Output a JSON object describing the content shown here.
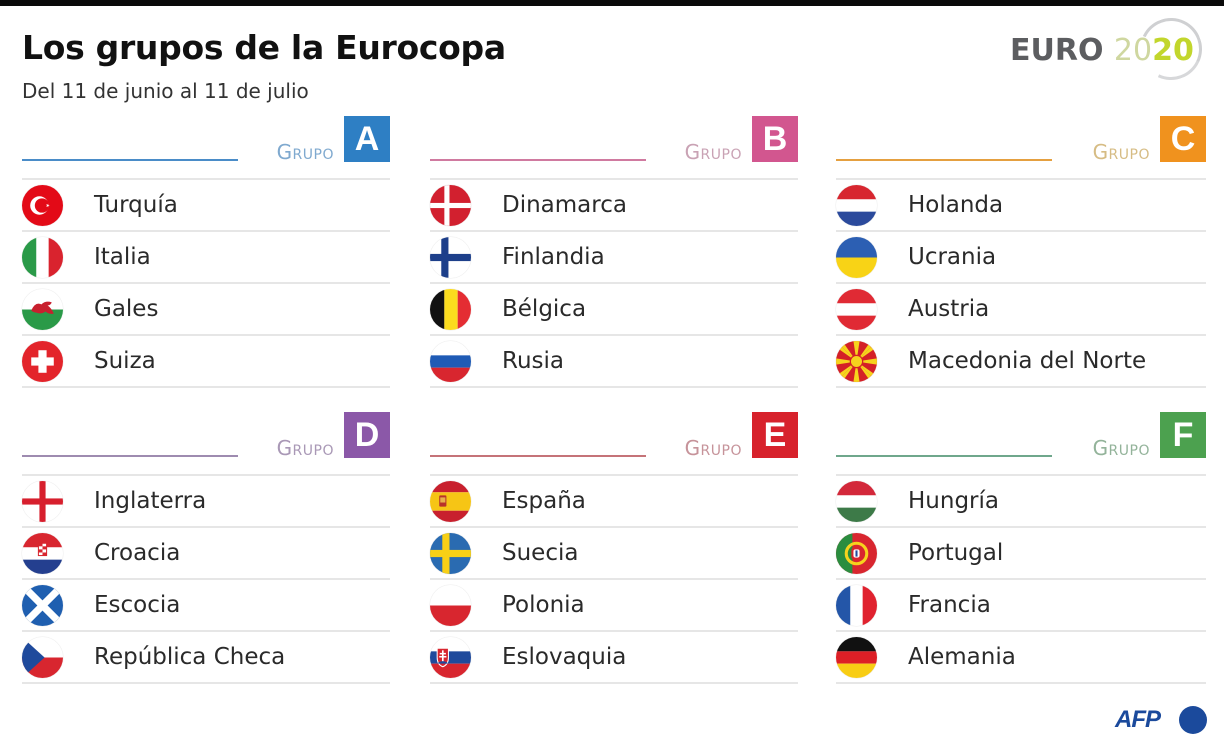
{
  "header": {
    "title": "Los grupos de la Eurocopa",
    "subtitle": "Del 11 de junio al 11 de julio"
  },
  "logo": {
    "euro": "EURO",
    "year_part1": "20",
    "year_part2": "20"
  },
  "group_label": "Grupo",
  "groups": [
    {
      "letter": "A",
      "color": "#2e7fc4",
      "label_color": "#7fa9cf",
      "line_color": "#4a8cc8",
      "teams": [
        {
          "name": "Turquía",
          "flag": "turkey-flag"
        },
        {
          "name": "Italia",
          "flag": "italy-flag"
        },
        {
          "name": "Gales",
          "flag": "wales-flag"
        },
        {
          "name": "Suiza",
          "flag": "switzerland-flag"
        }
      ]
    },
    {
      "letter": "B",
      "color": "#d2568f",
      "label_color": "#c9a2b4",
      "line_color": "#d07aa0",
      "teams": [
        {
          "name": "Dinamarca",
          "flag": "denmark-flag"
        },
        {
          "name": "Finlandia",
          "flag": "finland-flag"
        },
        {
          "name": "Bélgica",
          "flag": "belgium-flag"
        },
        {
          "name": "Rusia",
          "flag": "russia-flag"
        }
      ]
    },
    {
      "letter": "C",
      "color": "#f0921e",
      "label_color": "#d6bc84",
      "line_color": "#e5a040",
      "teams": [
        {
          "name": "Holanda",
          "flag": "netherlands-flag"
        },
        {
          "name": "Ucrania",
          "flag": "ukraine-flag"
        },
        {
          "name": "Austria",
          "flag": "austria-flag"
        },
        {
          "name": "Macedonia del Norte",
          "flag": "north-macedonia-flag"
        }
      ]
    },
    {
      "letter": "D",
      "color": "#8b58a8",
      "label_color": "#a998b6",
      "line_color": "#9e8bb0",
      "teams": [
        {
          "name": "Inglaterra",
          "flag": "england-flag"
        },
        {
          "name": "Croacia",
          "flag": "croatia-flag"
        },
        {
          "name": "Escocia",
          "flag": "scotland-flag"
        },
        {
          "name": "República Checa",
          "flag": "czech-republic-flag"
        }
      ]
    },
    {
      "letter": "E",
      "color": "#d7222c",
      "label_color": "#c6939a",
      "line_color": "#c57378",
      "teams": [
        {
          "name": "España",
          "flag": "spain-flag"
        },
        {
          "name": "Suecia",
          "flag": "sweden-flag"
        },
        {
          "name": "Polonia",
          "flag": "poland-flag"
        },
        {
          "name": "Eslovaquia",
          "flag": "slovakia-flag"
        }
      ]
    },
    {
      "letter": "F",
      "color": "#4ca14f",
      "label_color": "#93b39a",
      "line_color": "#6fa78c",
      "teams": [
        {
          "name": "Hungría",
          "flag": "hungary-flag"
        },
        {
          "name": "Portugal",
          "flag": "portugal-flag"
        },
        {
          "name": "Francia",
          "flag": "france-flag"
        },
        {
          "name": "Alemania",
          "flag": "germany-flag"
        }
      ]
    }
  ],
  "credit": {
    "agency": "AFP"
  }
}
